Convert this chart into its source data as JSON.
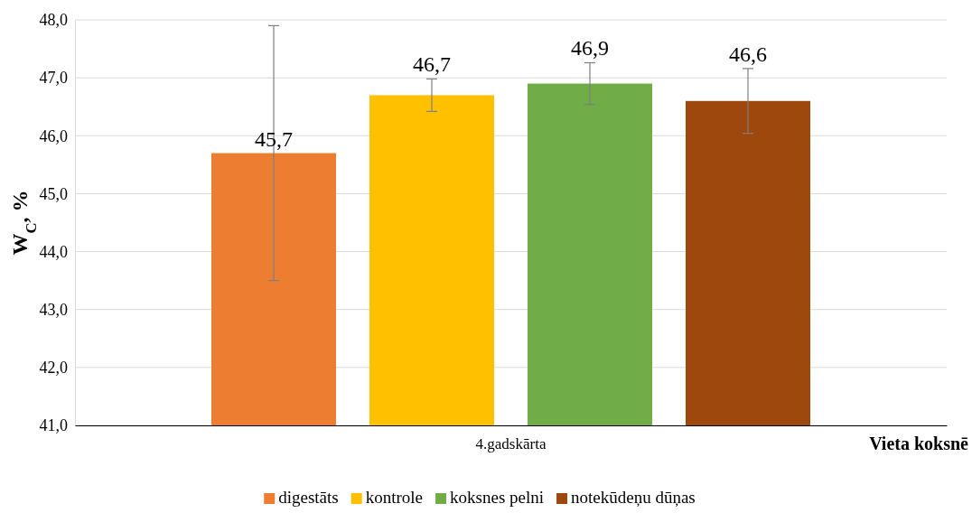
{
  "chart_data": {
    "type": "bar",
    "ylabel": "W$_{C}$, %",
    "xlabel": "Vieta koksnē",
    "categories": [
      "4.gadskārta"
    ],
    "series": [
      {
        "name": "digestāts",
        "color": "#ed7d31",
        "values": [
          45.7
        ],
        "errors": [
          2.2
        ],
        "value_labels": [
          "45,7"
        ]
      },
      {
        "name": "kontrole",
        "color": "#ffc000",
        "values": [
          46.7
        ],
        "errors": [
          0.28
        ],
        "value_labels": [
          "46,7"
        ]
      },
      {
        "name": "koksnes pelni",
        "color": "#70ad47",
        "values": [
          46.9
        ],
        "errors": [
          0.36
        ],
        "value_labels": [
          "46,9"
        ]
      },
      {
        "name": "notekūdeņu dūņas",
        "color": "#9e480e",
        "values": [
          46.6
        ],
        "errors": [
          0.56
        ],
        "value_labels": [
          "46,6"
        ]
      }
    ],
    "ylim": [
      41,
      48
    ],
    "yticks": [
      {
        "value": 41,
        "label": "41,0"
      },
      {
        "value": 42,
        "label": "42,0"
      },
      {
        "value": 43,
        "label": "43,0"
      },
      {
        "value": 44,
        "label": "44,0"
      },
      {
        "value": 45,
        "label": "45,0"
      },
      {
        "value": 46,
        "label": "46,0"
      },
      {
        "value": 47,
        "label": "47,0"
      },
      {
        "value": 48,
        "label": "48,0"
      }
    ],
    "grid": "y",
    "legend": "bottom"
  }
}
